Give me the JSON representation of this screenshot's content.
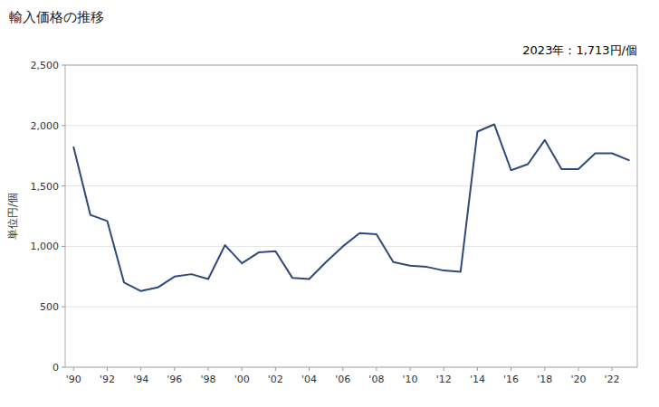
{
  "chart_data": {
    "type": "line",
    "title": "輸入価格の推移",
    "ylabel": "単位円/個",
    "annotation": "2023年：1,713円/個",
    "color": "#2e4a7a",
    "x": [
      1990,
      1991,
      1992,
      1993,
      1994,
      1995,
      1996,
      1997,
      1998,
      1999,
      2000,
      2001,
      2002,
      2003,
      2004,
      2005,
      2006,
      2007,
      2008,
      2009,
      2010,
      2011,
      2012,
      2013,
      2014,
      2015,
      2016,
      2017,
      2018,
      2019,
      2020,
      2021,
      2022,
      2023
    ],
    "values": [
      1820,
      1260,
      1210,
      700,
      630,
      660,
      750,
      770,
      730,
      1010,
      860,
      950,
      960,
      740,
      730,
      870,
      1000,
      1110,
      1100,
      870,
      840,
      830,
      800,
      790,
      1950,
      2010,
      1630,
      1680,
      1880,
      1640,
      1640,
      1770,
      1770,
      1713
    ],
    "xlim": [
      1989.5,
      2023.5
    ],
    "xticks": [
      {
        "value": 1990,
        "label": "'90"
      },
      {
        "value": 1992,
        "label": "'92"
      },
      {
        "value": 1994,
        "label": "'94"
      },
      {
        "value": 1996,
        "label": "'96"
      },
      {
        "value": 1998,
        "label": "'98"
      },
      {
        "value": 2000,
        "label": "'00"
      },
      {
        "value": 2002,
        "label": "'02"
      },
      {
        "value": 2004,
        "label": "'04"
      },
      {
        "value": 2006,
        "label": "'06"
      },
      {
        "value": 2008,
        "label": "'08"
      },
      {
        "value": 2010,
        "label": "'10"
      },
      {
        "value": 2012,
        "label": "'12"
      },
      {
        "value": 2014,
        "label": "'14"
      },
      {
        "value": 2016,
        "label": "'16"
      },
      {
        "value": 2018,
        "label": "'18"
      },
      {
        "value": 2020,
        "label": "'20"
      },
      {
        "value": 2022,
        "label": "'22"
      }
    ],
    "ylim": [
      0,
      2500
    ],
    "yticks": [
      0,
      500,
      {
        "value": 1000,
        "label": "1,000"
      },
      {
        "value": 1500,
        "label": "1,500"
      },
      {
        "value": 2000,
        "label": "2,000"
      },
      {
        "value": 2500,
        "label": "2,500"
      }
    ],
    "grid": true
  }
}
